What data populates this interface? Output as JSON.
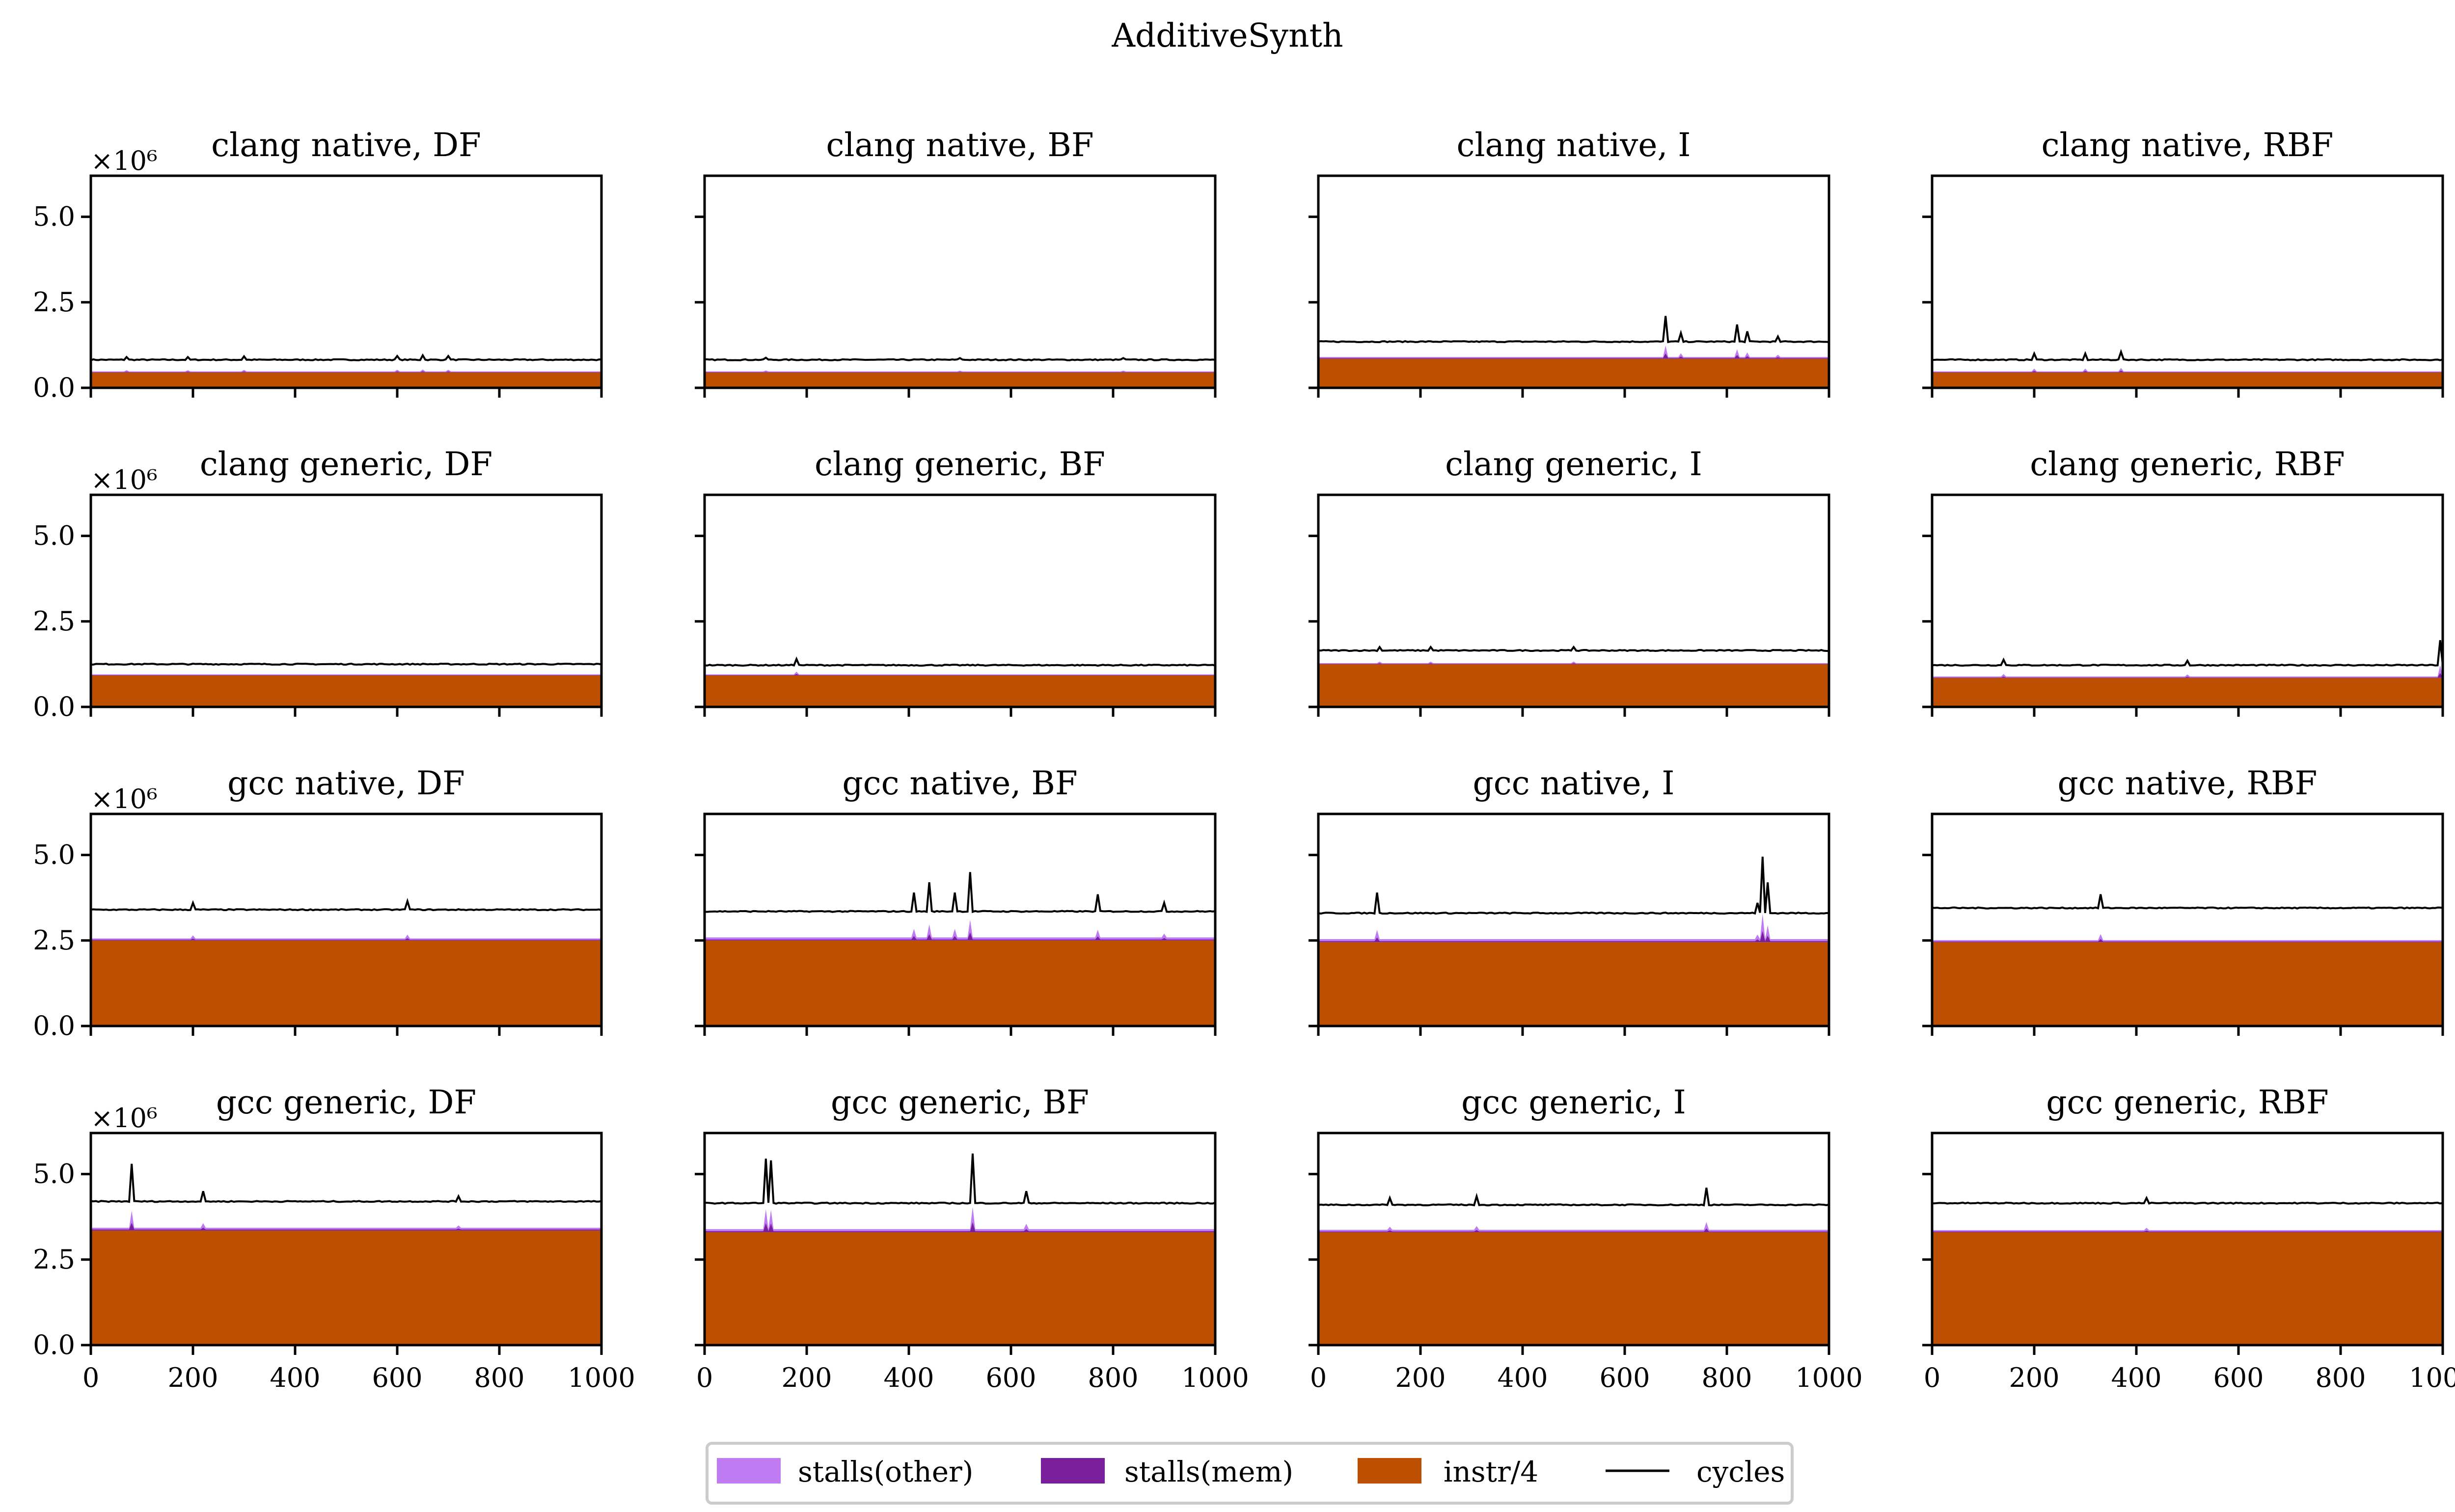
{
  "figure": {
    "title": "AdditiveSynth"
  },
  "legend": {
    "items": [
      {
        "label": "stalls(other)",
        "type": "patch",
        "color": "#bf7bf2"
      },
      {
        "label": "stalls(mem)",
        "type": "patch",
        "color": "#7a1f9c"
      },
      {
        "label": "instr/4",
        "type": "patch",
        "color": "#bd4f00"
      },
      {
        "label": "cycles",
        "type": "line",
        "color": "#000000"
      }
    ],
    "placement": "bottom-center"
  },
  "chart_data": {
    "type": "area",
    "grid": "4x4",
    "x_range": [
      0,
      1000
    ],
    "y_range": [
      0,
      6.2
    ],
    "y_multiplier_label": "×10⁶",
    "x_ticks": [
      0,
      200,
      400,
      600,
      800,
      1000
    ],
    "y_ticks": [
      0.0,
      2.5,
      5.0
    ],
    "y_tick_labels": [
      "0.0",
      "2.5",
      "5.0"
    ],
    "x_tick_labels": [
      "0",
      "200",
      "400",
      "600",
      "800",
      "1000"
    ],
    "series_names": [
      "instr/4",
      "stalls(mem)",
      "stalls(other)",
      "cycles"
    ],
    "panels": [
      {
        "title": "clang native, DF",
        "instr": 0.45,
        "stall_mem": 0.01,
        "stall_other": 0.02,
        "cycles": 0.82,
        "spikes": [
          [
            70,
            0.9
          ],
          [
            190,
            0.9
          ],
          [
            300,
            0.92
          ],
          [
            600,
            0.93
          ],
          [
            650,
            0.95
          ],
          [
            700,
            0.93
          ]
        ]
      },
      {
        "title": "clang native, BF",
        "instr": 0.45,
        "stall_mem": 0.01,
        "stall_other": 0.02,
        "cycles": 0.82,
        "spikes": [
          [
            120,
            0.88
          ],
          [
            500,
            0.87
          ],
          [
            820,
            0.87
          ]
        ]
      },
      {
        "title": "clang native, I",
        "instr": 0.85,
        "stall_mem": 0.02,
        "stall_other": 0.03,
        "cycles": 1.35,
        "spikes": [
          [
            680,
            2.1
          ],
          [
            710,
            1.6
          ],
          [
            820,
            1.85
          ],
          [
            840,
            1.65
          ],
          [
            900,
            1.5
          ]
        ]
      },
      {
        "title": "clang native, RBF",
        "instr": 0.45,
        "stall_mem": 0.01,
        "stall_other": 0.02,
        "cycles": 0.82,
        "spikes": [
          [
            200,
            1.0
          ],
          [
            300,
            1.0
          ],
          [
            370,
            1.05
          ]
        ]
      },
      {
        "title": "clang generic, DF",
        "instr": 0.92,
        "stall_mem": 0.01,
        "stall_other": 0.02,
        "cycles": 1.25,
        "spikes": []
      },
      {
        "title": "clang generic, BF",
        "instr": 0.92,
        "stall_mem": 0.01,
        "stall_other": 0.02,
        "cycles": 1.22,
        "spikes": [
          [
            180,
            1.4
          ]
        ]
      },
      {
        "title": "clang generic, I",
        "instr": 1.25,
        "stall_mem": 0.01,
        "stall_other": 0.02,
        "cycles": 1.65,
        "spikes": [
          [
            120,
            1.75
          ],
          [
            220,
            1.75
          ],
          [
            500,
            1.75
          ]
        ]
      },
      {
        "title": "clang generic, RBF",
        "instr": 0.85,
        "stall_mem": 0.01,
        "stall_other": 0.03,
        "cycles": 1.22,
        "spikes": [
          [
            140,
            1.38
          ],
          [
            500,
            1.35
          ],
          [
            995,
            1.95
          ]
        ]
      },
      {
        "title": "gcc native, DF",
        "instr": 2.5,
        "stall_mem": 0.02,
        "stall_other": 0.04,
        "cycles": 3.4,
        "spikes": [
          [
            200,
            3.6
          ],
          [
            620,
            3.65
          ]
        ]
      },
      {
        "title": "gcc native, BF",
        "instr": 2.5,
        "stall_mem": 0.03,
        "stall_other": 0.06,
        "cycles": 3.35,
        "spikes": [
          [
            410,
            3.9
          ],
          [
            440,
            4.2
          ],
          [
            490,
            3.9
          ],
          [
            520,
            4.5
          ],
          [
            770,
            3.85
          ],
          [
            900,
            3.6
          ]
        ]
      },
      {
        "title": "gcc native, I",
        "instr": 2.45,
        "stall_mem": 0.03,
        "stall_other": 0.06,
        "cycles": 3.3,
        "spikes": [
          [
            115,
            3.9
          ],
          [
            860,
            3.6
          ],
          [
            870,
            4.95
          ],
          [
            880,
            4.2
          ]
        ]
      },
      {
        "title": "gcc native, RBF",
        "instr": 2.45,
        "stall_mem": 0.02,
        "stall_other": 0.04,
        "cycles": 3.45,
        "spikes": [
          [
            330,
            3.85
          ]
        ]
      },
      {
        "title": "gcc generic, DF",
        "instr": 3.35,
        "stall_mem": 0.03,
        "stall_other": 0.05,
        "cycles": 4.2,
        "spikes": [
          [
            80,
            5.3
          ],
          [
            220,
            4.5
          ],
          [
            720,
            4.35
          ]
        ]
      },
      {
        "title": "gcc generic, BF",
        "instr": 3.3,
        "stall_mem": 0.03,
        "stall_other": 0.06,
        "cycles": 4.15,
        "spikes": [
          [
            120,
            5.45
          ],
          [
            130,
            5.4
          ],
          [
            525,
            5.6
          ],
          [
            630,
            4.5
          ]
        ]
      },
      {
        "title": "gcc generic, I",
        "instr": 3.3,
        "stall_mem": 0.02,
        "stall_other": 0.05,
        "cycles": 4.1,
        "spikes": [
          [
            140,
            4.3
          ],
          [
            310,
            4.35
          ],
          [
            760,
            4.6
          ]
        ]
      },
      {
        "title": "gcc generic, RBF",
        "instr": 3.3,
        "stall_mem": 0.02,
        "stall_other": 0.04,
        "cycles": 4.15,
        "spikes": [
          [
            420,
            4.3
          ]
        ]
      }
    ]
  }
}
